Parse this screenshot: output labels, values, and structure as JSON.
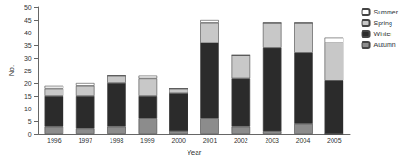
{
  "chart_data": {
    "type": "bar",
    "stacked": true,
    "x_label": "Year",
    "y_label": "No.",
    "categories": [
      "1996",
      "1997",
      "1998",
      "1999",
      "2000",
      "2001",
      "2002",
      "2003",
      "2004",
      "2005"
    ],
    "series": [
      {
        "name": "Autumn",
        "color": "#8c8c8c",
        "values": [
          3,
          2,
          3,
          6,
          1,
          6,
          3,
          1,
          4,
          0
        ]
      },
      {
        "name": "Winter",
        "color": "#2b2b2b",
        "values": [
          12,
          13,
          17,
          9,
          15,
          30,
          19,
          33,
          28,
          21
        ]
      },
      {
        "name": "Spring",
        "color": "#c8c8c8",
        "values": [
          3,
          4,
          3,
          7,
          2,
          8,
          9,
          10,
          12,
          15
        ]
      },
      {
        "name": "Summer",
        "color": "#ffffff",
        "values": [
          1,
          1,
          0,
          1,
          0,
          1,
          0,
          0,
          0,
          2
        ]
      }
    ],
    "ylim": [
      0,
      50
    ],
    "yticks": [
      0,
      5,
      10,
      15,
      20,
      25,
      30,
      35,
      40,
      45,
      50
    ],
    "grid": false,
    "legend": "right"
  }
}
